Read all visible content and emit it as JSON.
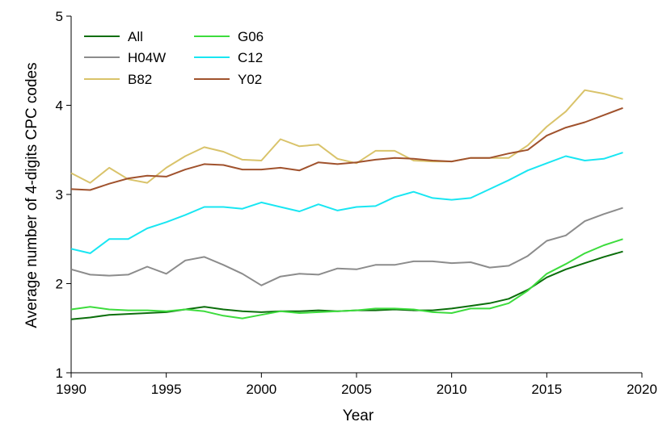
{
  "chart_data": {
    "type": "line",
    "title": "",
    "xlabel": "Year",
    "ylabel": "Average number of 4-digits CPC codes",
    "xlim": [
      1990,
      2020
    ],
    "ylim": [
      1,
      5
    ],
    "xticks": [
      1990,
      1995,
      2000,
      2005,
      2010,
      2015,
      2020
    ],
    "yticks": [
      1,
      2,
      3,
      4,
      5
    ],
    "grid": false,
    "legend_position": "top-left",
    "x": [
      1990,
      1991,
      1992,
      1993,
      1994,
      1995,
      1996,
      1997,
      1998,
      1999,
      2000,
      2001,
      2002,
      2003,
      2004,
      2005,
      2006,
      2007,
      2008,
      2009,
      2010,
      2011,
      2012,
      2013,
      2014,
      2015,
      2016,
      2017,
      2018,
      2019
    ],
    "series": [
      {
        "name": "All",
        "color": "#0b6e0b",
        "values": [
          1.6,
          1.62,
          1.65,
          1.66,
          1.67,
          1.68,
          1.71,
          1.74,
          1.71,
          1.69,
          1.68,
          1.69,
          1.69,
          1.7,
          1.69,
          1.7,
          1.7,
          1.71,
          1.7,
          1.7,
          1.72,
          1.75,
          1.78,
          1.83,
          1.93,
          2.07,
          2.16,
          2.23,
          2.3,
          2.36
        ]
      },
      {
        "name": "H04W",
        "color": "#8c8c8c",
        "values": [
          2.16,
          2.1,
          2.09,
          2.1,
          2.19,
          2.11,
          2.26,
          2.3,
          2.21,
          2.11,
          1.98,
          2.08,
          2.11,
          2.1,
          2.17,
          2.16,
          2.21,
          2.21,
          2.25,
          2.25,
          2.23,
          2.24,
          2.18,
          2.2,
          2.31,
          2.48,
          2.54,
          2.7,
          2.78,
          2.85
        ]
      },
      {
        "name": "B82",
        "color": "#d9c36a",
        "values": [
          3.24,
          3.13,
          3.3,
          3.17,
          3.13,
          3.3,
          3.43,
          3.53,
          3.48,
          3.39,
          3.38,
          3.62,
          3.54,
          3.56,
          3.4,
          3.35,
          3.49,
          3.49,
          3.38,
          3.37,
          3.37,
          3.41,
          3.41,
          3.41,
          3.55,
          3.76,
          3.93,
          4.17,
          4.13,
          4.07
        ]
      },
      {
        "name": "G06",
        "color": "#3ddc3d",
        "values": [
          1.71,
          1.74,
          1.71,
          1.7,
          1.7,
          1.69,
          1.71,
          1.69,
          1.64,
          1.61,
          1.65,
          1.69,
          1.67,
          1.68,
          1.69,
          1.7,
          1.72,
          1.72,
          1.71,
          1.68,
          1.67,
          1.72,
          1.72,
          1.78,
          1.92,
          2.11,
          2.22,
          2.34,
          2.43,
          2.5
        ]
      },
      {
        "name": "C12",
        "color": "#19e6f2",
        "values": [
          2.39,
          2.34,
          2.5,
          2.5,
          2.62,
          2.69,
          2.77,
          2.86,
          2.86,
          2.84,
          2.91,
          2.86,
          2.81,
          2.89,
          2.82,
          2.86,
          2.87,
          2.97,
          3.03,
          2.96,
          2.94,
          2.96,
          3.06,
          3.16,
          3.27,
          3.35,
          3.43,
          3.38,
          3.4,
          3.47
        ]
      },
      {
        "name": "Y02",
        "color": "#a0522d",
        "values": [
          3.06,
          3.05,
          3.12,
          3.18,
          3.21,
          3.2,
          3.28,
          3.34,
          3.33,
          3.28,
          3.28,
          3.3,
          3.27,
          3.36,
          3.34,
          3.36,
          3.39,
          3.41,
          3.4,
          3.38,
          3.37,
          3.41,
          3.41,
          3.46,
          3.5,
          3.66,
          3.75,
          3.81,
          3.89,
          3.97
        ]
      }
    ],
    "legend_order": [
      "All",
      "H04W",
      "B82",
      "G06",
      "C12",
      "Y02"
    ]
  }
}
